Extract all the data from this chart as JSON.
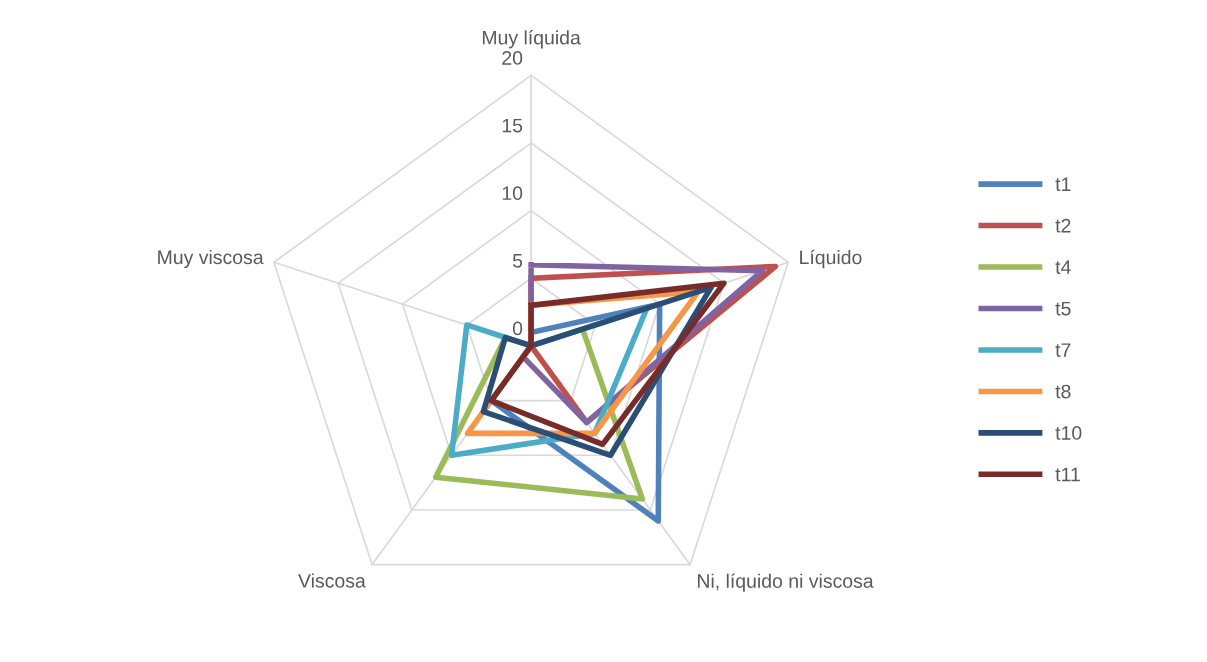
{
  "chart_data": {
    "type": "radar",
    "categories": [
      "Muy líquida",
      "Líquido",
      "Ni, líquido ni viscosa",
      "Viscosa",
      "Muy viscosa"
    ],
    "ylim": [
      0,
      20
    ],
    "yticks": [
      0,
      5,
      10,
      15,
      20
    ],
    "grid": true,
    "legend": "right",
    "marker": "none",
    "line_style": "solid",
    "series": [
      {
        "name": "t1",
        "color": "#4f81bd",
        "values": [
          1,
          10,
          16,
          5,
          0
        ]
      },
      {
        "name": "t2",
        "color": "#c0504d",
        "values": [
          5,
          19,
          7,
          0,
          0
        ]
      },
      {
        "name": "t4",
        "color": "#9bbb59",
        "values": [
          0,
          4,
          14,
          12,
          2
        ]
      },
      {
        "name": "t5",
        "color": "#8064a2",
        "values": [
          6,
          18,
          7,
          1,
          0
        ]
      },
      {
        "name": "t7",
        "color": "#4bacc6",
        "values": [
          0,
          9,
          8,
          10,
          5
        ]
      },
      {
        "name": "t8",
        "color": "#f79646",
        "values": [
          3,
          13,
          8,
          8,
          0
        ]
      },
      {
        "name": "t10",
        "color": "#2c4d75",
        "values": [
          0,
          14,
          10,
          6,
          2
        ]
      },
      {
        "name": "t11",
        "color": "#772c2a",
        "values": [
          3,
          15,
          9,
          5,
          0
        ]
      }
    ]
  }
}
